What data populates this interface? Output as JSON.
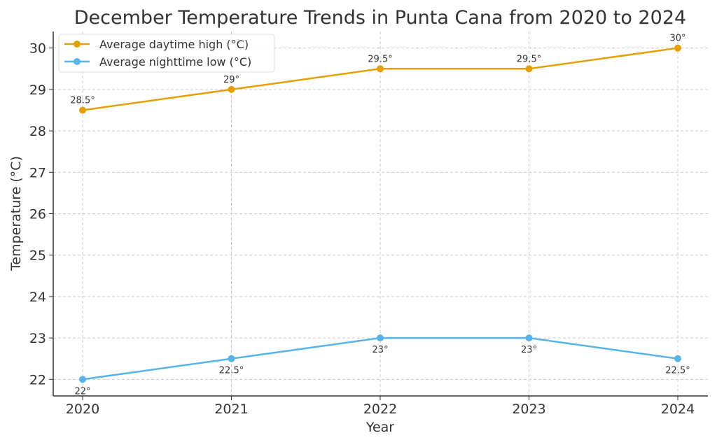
{
  "chart_data": {
    "type": "line",
    "title": "December Temperature Trends in Punta Cana from 2020 to 2024",
    "xlabel": "Year",
    "ylabel": "Temperature (°C)",
    "categories": [
      "2020",
      "2021",
      "2022",
      "2023",
      "2024"
    ],
    "yticks": [
      22,
      23,
      24,
      25,
      26,
      27,
      28,
      29,
      30
    ],
    "ylim": [
      21.6,
      30.4
    ],
    "grid": true,
    "legend_position": "top-left",
    "series": [
      {
        "name": "Average daytime high (°C)",
        "color": "#E69F00",
        "values": [
          28.5,
          29,
          29.5,
          29.5,
          30
        ],
        "labels": [
          "28.5°",
          "29°",
          "29.5°",
          "29.5°",
          "30°"
        ],
        "label_position": "above"
      },
      {
        "name": "Average nighttime low (°C)",
        "color": "#56B4E9",
        "values": [
          22,
          22.5,
          23,
          23,
          22.5
        ],
        "labels": [
          "22°",
          "22.5°",
          "23°",
          "23°",
          "22.5°"
        ],
        "label_position": "below"
      }
    ]
  }
}
